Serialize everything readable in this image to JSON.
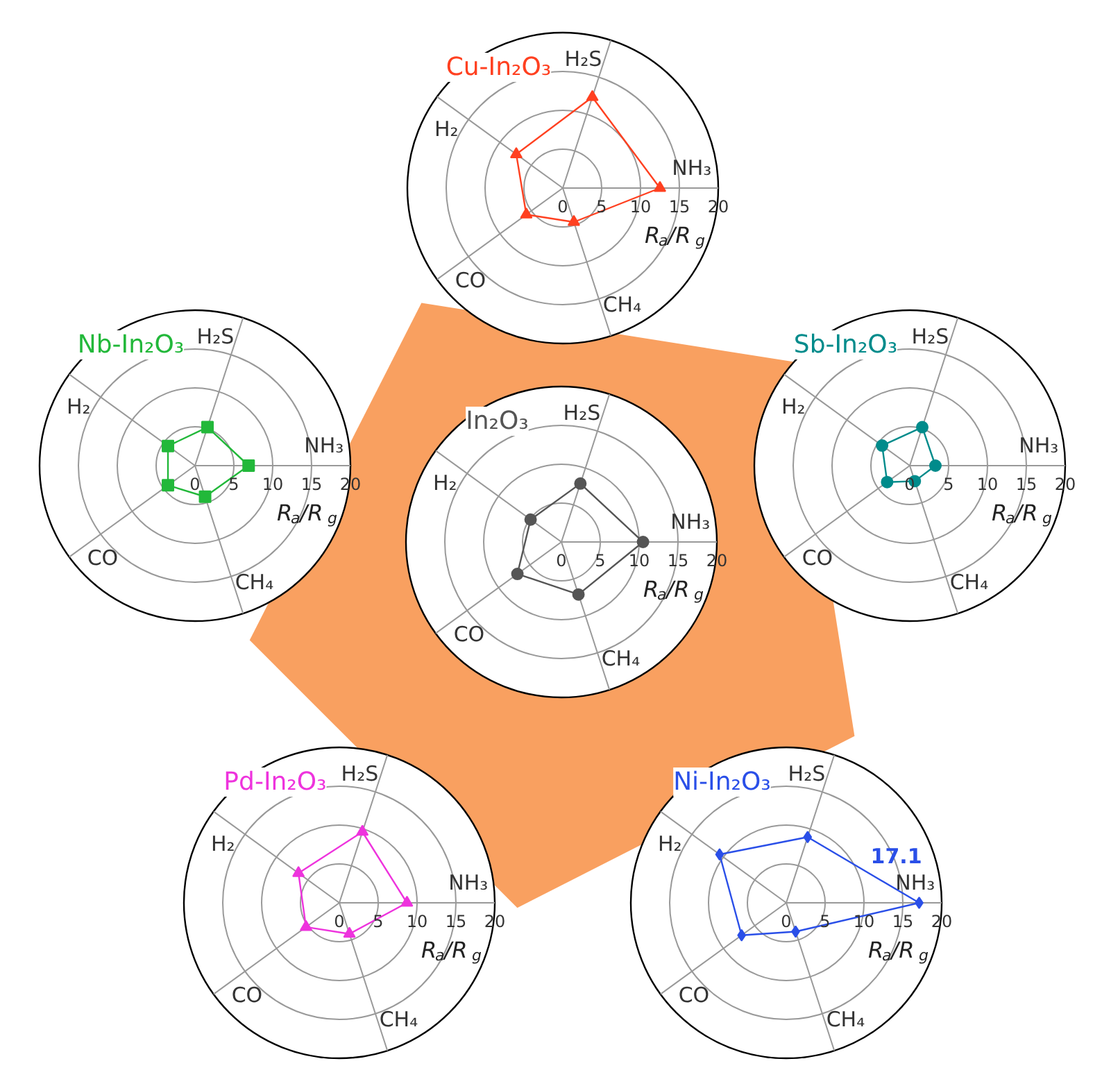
{
  "chart_data": [
    {
      "type": "radar",
      "title": "Cu-In₂O₃",
      "categories": [
        "H₂S",
        "NH₃",
        "CH₄",
        "CO",
        "H₂"
      ],
      "ylim": [
        0,
        20
      ],
      "yticks": [
        0,
        5,
        10,
        15,
        20
      ],
      "ylabel": "R$_{a}$/R$_{g}$",
      "grid": true,
      "marker": "triangle",
      "series": [
        {
          "color": "#ff4020",
          "values": [
            12.3,
            12.5,
            4.6,
            5.8,
            7.4
          ]
        }
      ]
    },
    {
      "type": "radar",
      "title": "Nb-In₂O₃",
      "categories": [
        "H₂S",
        "NH₃",
        "CH₄",
        "CO",
        "H₂"
      ],
      "ylim": [
        0,
        20
      ],
      "yticks": [
        0,
        5,
        10,
        15,
        20
      ],
      "ylabel": "R$_{a}$/R$_{g}$",
      "grid": true,
      "marker": "square",
      "series": [
        {
          "color": "#22b83a",
          "values": [
            5.2,
            6.9,
            4.2,
            4.3,
            4.3
          ]
        }
      ]
    },
    {
      "type": "radar",
      "title": "Sb-In₂O₃",
      "categories": [
        "H₂S",
        "NH₃",
        "CH₄",
        "CO",
        "H₂"
      ],
      "ylim": [
        0,
        20
      ],
      "yticks": [
        0,
        5,
        10,
        15,
        20
      ],
      "ylabel": "R$_{a}$/R$_{g}$",
      "grid": true,
      "marker": "circle",
      "series": [
        {
          "color": "#008b8b",
          "values": [
            5.2,
            3.3,
            2.1,
            3.6,
            4.4
          ]
        }
      ]
    },
    {
      "type": "radar",
      "title": "In₂O₃",
      "categories": [
        "H₂S",
        "NH₃",
        "CH₄",
        "CO",
        "H₂"
      ],
      "ylim": [
        0,
        20
      ],
      "yticks": [
        0,
        5,
        10,
        15,
        20
      ],
      "ylabel": "R$_{a}$/R$_{g}$",
      "grid": true,
      "marker": "circle",
      "series": [
        {
          "color": "#555555",
          "values": [
            7.9,
            10.5,
            7.1,
            7.0,
            4.9
          ]
        }
      ]
    },
    {
      "type": "radar",
      "title": "Pd-In₂O₃",
      "categories": [
        "H₂S",
        "NH₃",
        "CH₄",
        "CO",
        "H₂"
      ],
      "ylim": [
        0,
        20
      ],
      "yticks": [
        0,
        5,
        10,
        15,
        20
      ],
      "ylabel": "R$_{a}$/R$_{g}$",
      "grid": true,
      "marker": "triangle",
      "series": [
        {
          "color": "#ee33dd",
          "values": [
            9.6,
            8.7,
            4.2,
            5.3,
            6.5
          ]
        }
      ]
    },
    {
      "type": "radar",
      "title": "Ni-In₂O₃",
      "categories": [
        "H₂S",
        "NH₃",
        "CH₄",
        "CO",
        "H₂"
      ],
      "ylim": [
        0,
        20
      ],
      "yticks": [
        0,
        5,
        10,
        15,
        20
      ],
      "ylabel": "R$_{a}$/R$_{g}$",
      "grid": true,
      "marker": "diamond",
      "series": [
        {
          "color": "#2a4fe8",
          "values": [
            8.9,
            17.1,
            3.9,
            7.1,
            10.6
          ],
          "value_labels": [
            null,
            "17.1",
            null,
            null,
            null
          ]
        }
      ]
    }
  ]
}
